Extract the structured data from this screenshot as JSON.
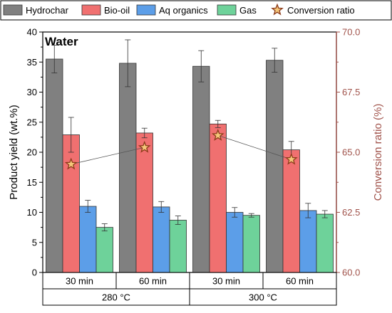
{
  "chart_data": {
    "type": "bar",
    "title": "Water",
    "ylabel": "Product yield (wt.%)",
    "y2label": "Conversion ratio (%)",
    "ylim": [
      0,
      40
    ],
    "y2lim": [
      60,
      70
    ],
    "yticks": [
      "0",
      "5",
      "10",
      "15",
      "20",
      "25",
      "30",
      "35",
      "40"
    ],
    "y2ticks": [
      "60.0",
      "62.5",
      "65.0",
      "67.5",
      "70.0"
    ],
    "categories": [
      "30 min",
      "60 min",
      "30 min",
      "60 min"
    ],
    "groups": [
      {
        "label": "280 °C",
        "span": [
          0,
          1
        ]
      },
      {
        "label": "300 °C",
        "span": [
          2,
          3
        ]
      }
    ],
    "series": [
      {
        "name": "Hydrochar",
        "values": [
          35.5,
          34.8,
          34.3,
          35.3
        ],
        "errors": [
          2.3,
          3.9,
          2.6,
          2.0
        ],
        "color": "#808080"
      },
      {
        "name": "Bio-oil",
        "values": [
          22.9,
          23.2,
          24.7,
          20.4
        ],
        "errors": [
          2.9,
          0.8,
          0.6,
          1.4
        ],
        "color": "#f07070"
      },
      {
        "name": "Aq organics",
        "values": [
          11.0,
          10.9,
          10.0,
          10.3
        ],
        "errors": [
          1.0,
          0.9,
          0.8,
          1.2
        ],
        "color": "#5c9ee8"
      },
      {
        "name": "Gas",
        "values": [
          7.5,
          8.7,
          9.5,
          9.7
        ],
        "errors": [
          0.6,
          0.7,
          0.3,
          0.6
        ],
        "color": "#6ed29a"
      }
    ],
    "line_series": {
      "name": "Conversion ratio",
      "values": [
        64.5,
        65.2,
        65.7,
        64.7
      ],
      "axis": "right",
      "marker": "star",
      "color": "#8b3a1a"
    },
    "legend_position": "top",
    "axis_colors": {
      "left": "#000000",
      "right": "#a0524a"
    }
  }
}
